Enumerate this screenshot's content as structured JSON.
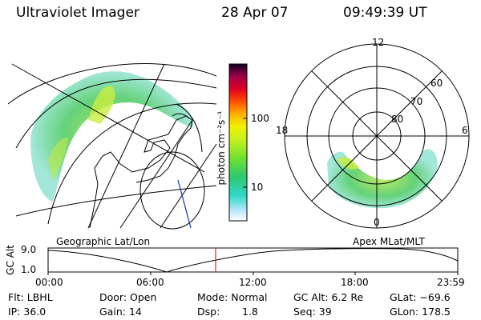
{
  "header": {
    "title": "Ultraviolet Imager",
    "date": "28 Apr 07",
    "time": "09:49:39 UT"
  },
  "colorbar": {
    "unit": "photon cm⁻²s⁻¹",
    "ticks": [
      "100",
      "10"
    ]
  },
  "polar_plot": {
    "mlt_labels": [
      "12",
      "18",
      "6",
      "0"
    ],
    "lat_labels": [
      "60",
      "70",
      "80"
    ]
  },
  "panel_labels": {
    "left": "Geographic Lat/Lon",
    "right": "Apex MLat/MLT"
  },
  "timeline": {
    "ylabel": "GC Alt",
    "yticks": [
      "9.0",
      "1.0"
    ],
    "xticks": [
      "00:00",
      "06:00",
      "12:00",
      "18:00",
      "23:59"
    ],
    "current_time_fraction": 0.409
  },
  "info": {
    "flt": "Flt: LBHL",
    "ip": "IP: 36.0",
    "door": "Door: Open",
    "gain": "Gain: 14",
    "mode": "Mode: Normal",
    "dsp_label": "Dsp:",
    "dsp_value": "1.8",
    "gcalt": "GC Alt: 6.2 Re",
    "seq": "Seq: 39",
    "glat": "GLat: −69.6",
    "glon": "GLon: 178.5"
  }
}
